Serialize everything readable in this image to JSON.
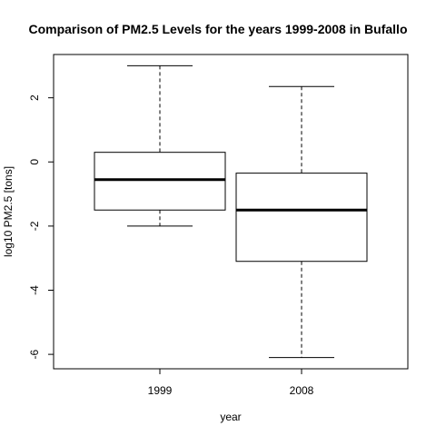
{
  "chart_data": {
    "type": "boxplot",
    "title": "Comparison of PM2.5 Levels for the years 1999-2008 in Bufallo",
    "xlabel": "year",
    "ylabel": "log10 PM2.5 [tons]",
    "categories": [
      "1999",
      "2008"
    ],
    "boxes": [
      {
        "category": "1999",
        "whisker_low": -2.0,
        "q1": -1.5,
        "median": -0.55,
        "q3": 0.3,
        "whisker_high": 3.0
      },
      {
        "category": "2008",
        "whisker_low": -6.1,
        "q1": -3.1,
        "median": -1.5,
        "q3": -0.35,
        "whisker_high": 2.35
      }
    ],
    "yticks": [
      -6,
      -4,
      -2,
      0,
      2
    ],
    "ytick_labels": [
      "-6",
      "-4",
      "-2",
      "0",
      "2"
    ],
    "ylim": [
      -6.45,
      3.35
    ],
    "grid": false,
    "colors": {
      "box": "#000000",
      "median": "#000000",
      "background": "#ffffff"
    }
  }
}
